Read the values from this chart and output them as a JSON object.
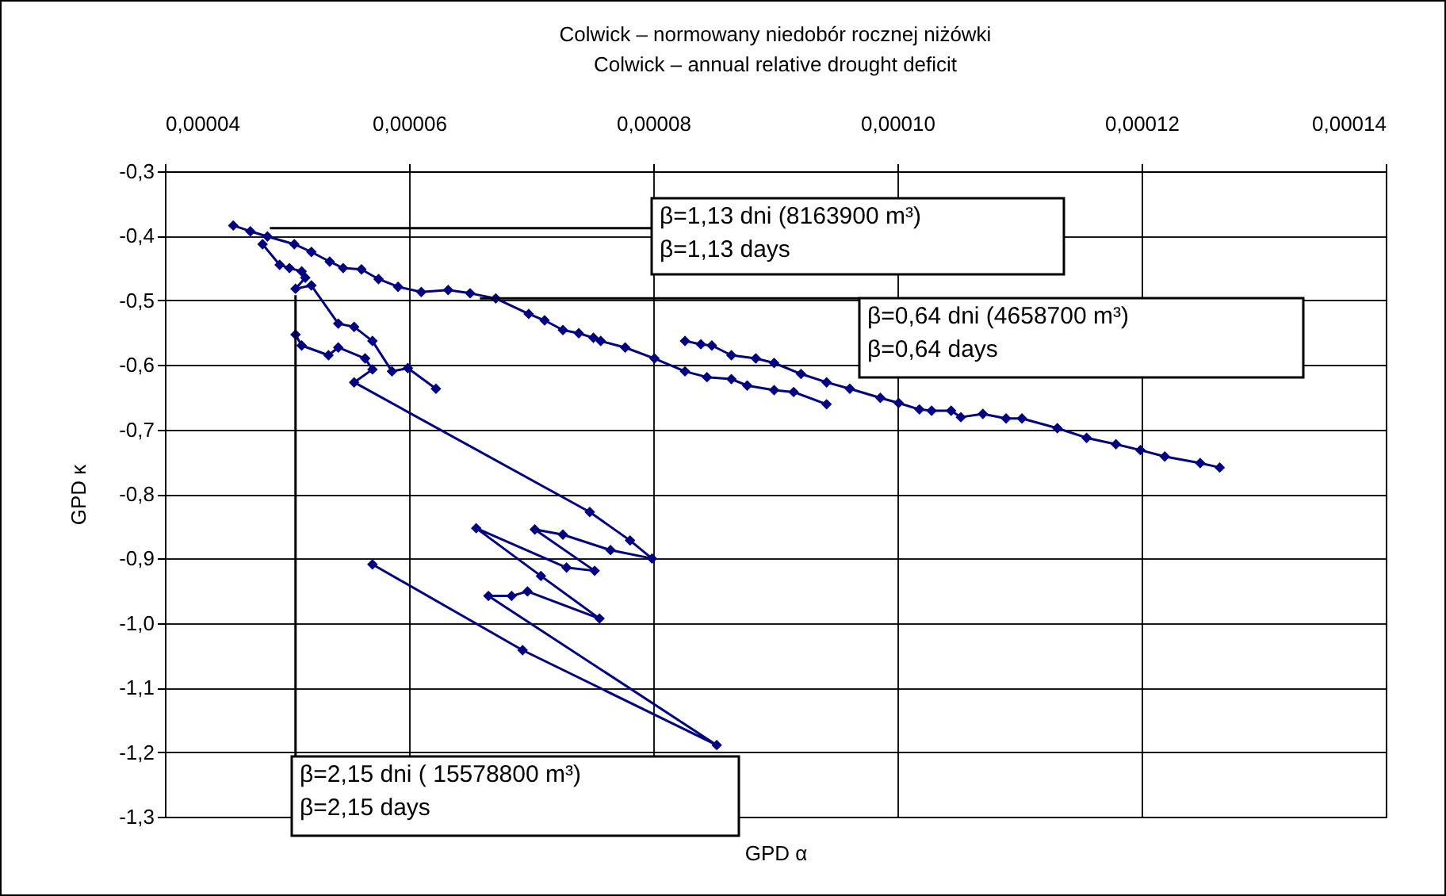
{
  "chart_data": {
    "type": "line",
    "title": "Colwick – normowany niedobór rocznej niżówki",
    "subtitle": "Colwick – annual relative drought deficit",
    "xlabel": "GPD α",
    "ylabel": "GPD κ",
    "xlim": [
      4e-05,
      0.00014
    ],
    "xticks": [
      {
        "value": 4e-05,
        "label": "0,00004"
      },
      {
        "value": 6e-05,
        "label": "0,00006"
      },
      {
        "value": 8e-05,
        "label": "0,00008"
      },
      {
        "value": 0.0001,
        "label": "0,00010"
      },
      {
        "value": 0.00012,
        "label": "0,00012"
      },
      {
        "value": 0.00014,
        "label": "0,00014"
      }
    ],
    "ylim": [
      -1.3,
      -0.3
    ],
    "yticks": [
      {
        "value": -0.3,
        "label": "-0,3"
      },
      {
        "value": -0.4,
        "label": "-0,4"
      },
      {
        "value": -0.5,
        "label": "-0,5"
      },
      {
        "value": -0.6,
        "label": "-0,6"
      },
      {
        "value": -0.7,
        "label": "-0,7"
      },
      {
        "value": -0.8,
        "label": "-0,8"
      },
      {
        "value": -0.9,
        "label": "-0,9"
      },
      {
        "value": -1.0,
        "label": "-1,0"
      },
      {
        "value": -1.1,
        "label": "-1,1"
      },
      {
        "value": -1.2,
        "label": "-1,2"
      },
      {
        "value": -1.3,
        "label": "-1,3"
      }
    ],
    "grid": true,
    "marker": "diamond",
    "line_style": "solid",
    "series": [
      {
        "color": "#000080",
        "x": [
          4.56e-05,
          4.7e-05,
          4.84e-05,
          5.06e-05,
          5.2e-05,
          5.35e-05,
          5.46e-05,
          5.61e-05,
          5.75e-05,
          5.91e-05,
          6.1e-05,
          6.32e-05,
          6.5e-05,
          6.71e-05,
          6.98e-05,
          7.11e-05,
          7.26e-05,
          7.39e-05,
          7.51e-05,
          7.57e-05,
          7.77e-05,
          8.01e-05,
          8.26e-05,
          8.44e-05,
          8.64e-05,
          8.77e-05,
          8.99e-05,
          9.15e-05,
          9.42e-05
        ],
        "values": [
          -0.384,
          -0.393,
          -0.401,
          -0.413,
          -0.425,
          -0.44,
          -0.45,
          -0.452,
          -0.467,
          -0.479,
          -0.487,
          -0.484,
          -0.489,
          -0.497,
          -0.521,
          -0.531,
          -0.546,
          -0.551,
          -0.558,
          -0.563,
          -0.573,
          -0.59,
          -0.61,
          -0.619,
          -0.622,
          -0.632,
          -0.639,
          -0.642,
          -0.661
        ]
      },
      {
        "color": "#000080",
        "x": [
          8.26e-05,
          8.39e-05,
          8.48e-05,
          8.64e-05,
          8.84e-05,
          8.99e-05,
          9.21e-05,
          9.42e-05,
          9.61e-05,
          9.86e-05,
          0.0001001,
          0.0001018,
          0.0001028,
          0.0001044,
          0.0001052,
          0.000107,
          0.0001089,
          0.0001102,
          0.0001131,
          0.0001155,
          0.0001179,
          0.0001199,
          0.0001219,
          0.0001248,
          0.0001264
        ],
        "values": [
          -0.563,
          -0.568,
          -0.57,
          -0.585,
          -0.59,
          -0.597,
          -0.614,
          -0.627,
          -0.637,
          -0.651,
          -0.659,
          -0.669,
          -0.671,
          -0.671,
          -0.681,
          -0.676,
          -0.683,
          -0.683,
          -0.698,
          -0.713,
          -0.723,
          -0.732,
          -0.742,
          -0.752,
          -0.759
        ]
      },
      {
        "color": "#000080",
        "x": [
          4.8e-05,
          4.94e-05,
          5.02e-05,
          5.12e-05,
          5.15e-05,
          5.07e-05,
          5.2e-05,
          5.42e-05,
          5.55e-05,
          5.7e-05,
          5.86e-05,
          5.99e-05,
          6.22e-05
        ],
        "values": [
          -0.413,
          -0.445,
          -0.45,
          -0.455,
          -0.465,
          -0.482,
          -0.477,
          -0.536,
          -0.541,
          -0.563,
          -0.61,
          -0.605,
          -0.637
        ]
      },
      {
        "color": "#000080",
        "x": [
          5.07e-05,
          5.12e-05,
          5.34e-05,
          5.42e-05,
          5.64e-05,
          5.7e-05,
          5.55e-05,
          7.48e-05,
          7.81e-05,
          7.99e-05,
          7.65e-05,
          7.26e-05,
          7.03e-05,
          7.52e-05,
          7.29e-05,
          6.55e-05,
          7.08e-05,
          7.56e-05,
          6.97e-05,
          6.84e-05,
          6.65e-05,
          8.52e-05,
          6.93e-05,
          5.7e-05
        ],
        "values": [
          -0.553,
          -0.57,
          -0.585,
          -0.573,
          -0.59,
          -0.607,
          -0.627,
          -0.828,
          -0.872,
          -0.9,
          -0.887,
          -0.863,
          -0.855,
          -0.919,
          -0.914,
          -0.853,
          -0.927,
          -0.993,
          -0.951,
          -0.958,
          -0.958,
          -1.189,
          -1.042,
          -0.909
        ]
      }
    ],
    "annotations": [
      {
        "text": "β=1,13 dni (8163900 m³)\nβ=1,13 days",
        "x": 4.86e-05,
        "y": -0.388
      },
      {
        "text": "β=0,64 dni (4658700 m³)\nβ=0,64 days",
        "x": 6.58e-05,
        "y": -0.497
      },
      {
        "text": "β=2,15 dni ( 15578800 m³)\nβ=2,15 days",
        "x": 5.07e-05,
        "y": -0.492
      }
    ]
  }
}
